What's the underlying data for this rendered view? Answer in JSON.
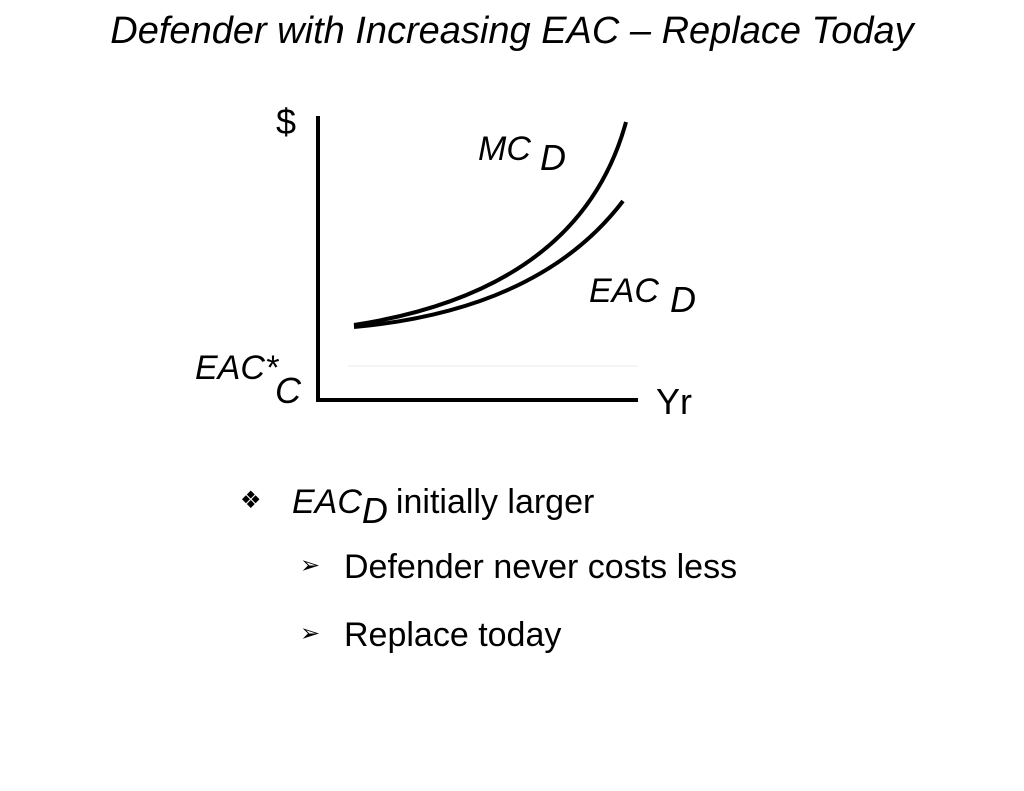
{
  "title": "Defender with Increasing EAC – Replace Today",
  "diagram": {
    "y_axis_label": "$",
    "x_axis_label": "Yr",
    "mc_label": "MC",
    "mc_subscript": "D",
    "eac_d_label": "EAC",
    "eac_d_subscript": "D",
    "eac_c_label": "EAC*",
    "eac_c_subscript": "C"
  },
  "bullets": [
    {
      "marker": "❖",
      "term": "EAC",
      "subscript": "D",
      "text": "initially larger",
      "children": [
        {
          "marker": "➢",
          "text": "Defender never costs less"
        },
        {
          "marker": "➢",
          "text": "Replace today"
        }
      ]
    }
  ]
}
